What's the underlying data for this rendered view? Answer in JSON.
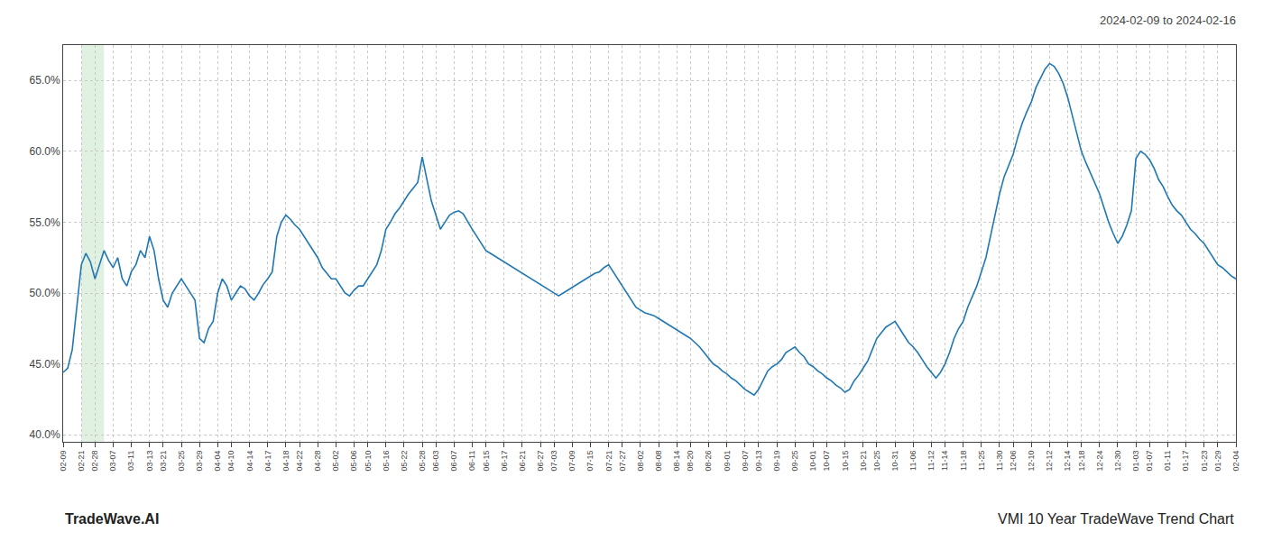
{
  "chart_data": {
    "type": "line",
    "title": "2024-02-09 to 2024-02-16",
    "annotations": [
      {
        "text": "TradeWave.AI"
      },
      {
        "text": "VMI 10 Year TradeWave Trend Chart"
      }
    ],
    "categories": [
      "02-09",
      null,
      null,
      null,
      "02-21",
      null,
      null,
      "02-28",
      null,
      null,
      null,
      "03-07",
      null,
      null,
      null,
      "03-11",
      null,
      null,
      null,
      "03-13",
      null,
      null,
      "03-21",
      null,
      null,
      null,
      "03-25",
      null,
      null,
      null,
      "03-29",
      null,
      null,
      null,
      "04-04",
      null,
      null,
      "04-10",
      null,
      null,
      null,
      "04-14",
      null,
      null,
      null,
      "04-17",
      null,
      null,
      null,
      "04-18",
      null,
      null,
      "04-22",
      null,
      null,
      null,
      "04-28",
      null,
      null,
      null,
      "05-02",
      null,
      null,
      null,
      "05-06",
      null,
      null,
      "05-10",
      null,
      null,
      null,
      "05-16",
      null,
      null,
      null,
      "05-22",
      null,
      null,
      null,
      "05-28",
      null,
      null,
      "06-03",
      null,
      null,
      null,
      "06-07",
      null,
      null,
      null,
      "06-11",
      null,
      null,
      "06-15",
      null,
      null,
      null,
      "06-17",
      null,
      null,
      null,
      "06-21",
      null,
      null,
      null,
      "06-27",
      null,
      null,
      "07-03",
      null,
      null,
      null,
      "07-09",
      null,
      null,
      null,
      "07-15",
      null,
      null,
      null,
      "07-21",
      null,
      null,
      "07-27",
      null,
      null,
      null,
      "08-02",
      null,
      null,
      null,
      "08-08",
      null,
      null,
      null,
      "08-14",
      null,
      null,
      "08-20",
      null,
      null,
      null,
      "08-26",
      null,
      null,
      null,
      "09-01",
      null,
      null,
      null,
      "09-07",
      null,
      null,
      "09-13",
      null,
      null,
      null,
      "09-19",
      null,
      null,
      null,
      "09-25",
      null,
      null,
      null,
      "10-01",
      null,
      null,
      "10-07",
      null,
      null,
      null,
      "10-15",
      null,
      null,
      null,
      "10-21",
      null,
      null,
      "10-25",
      null,
      null,
      null,
      "10-31",
      null,
      null,
      null,
      "11-06",
      null,
      null,
      null,
      "11-12",
      null,
      null,
      "11-14",
      null,
      null,
      null,
      "11-18",
      null,
      null,
      null,
      "11-25",
      null,
      null,
      null,
      "11-30",
      null,
      null,
      "12-06",
      null,
      null,
      null,
      "12-10",
      null,
      null,
      null,
      "12-12",
      null,
      null,
      null,
      "12-14",
      null,
      null,
      "12-18",
      null,
      null,
      null,
      "12-24",
      null,
      null,
      null,
      "12-30",
      null,
      null,
      null,
      "01-03",
      null,
      null,
      "01-07",
      null,
      null,
      null,
      "01-11",
      null,
      null,
      null,
      "01-17",
      null,
      null,
      null,
      "01-23",
      null,
      null,
      "01-29",
      null,
      null,
      null,
      "02-04"
    ],
    "values": [
      0.444,
      0.447,
      0.46,
      0.49,
      0.52,
      0.528,
      0.522,
      0.51,
      0.52,
      0.53,
      0.523,
      0.518,
      0.525,
      0.51,
      0.505,
      0.515,
      0.52,
      0.53,
      0.525,
      0.54,
      0.53,
      0.51,
      0.495,
      0.49,
      0.5,
      0.505,
      0.51,
      0.505,
      0.5,
      0.495,
      0.468,
      0.465,
      0.475,
      0.48,
      0.5,
      0.51,
      0.505,
      0.495,
      0.5,
      0.505,
      0.503,
      0.498,
      0.495,
      0.5,
      0.506,
      0.51,
      0.515,
      0.54,
      0.55,
      0.555,
      0.552,
      0.548,
      0.545,
      0.54,
      0.535,
      0.53,
      0.525,
      0.518,
      0.514,
      0.51,
      0.51,
      0.505,
      0.5,
      0.498,
      0.502,
      0.505,
      0.505,
      0.51,
      0.515,
      0.52,
      0.53,
      0.545,
      0.55,
      0.556,
      0.56,
      0.565,
      0.57,
      0.574,
      0.578,
      0.596,
      0.58,
      0.565,
      0.555,
      0.545,
      0.55,
      0.555,
      0.557,
      0.558,
      0.556,
      0.55,
      0.545,
      0.54,
      0.535,
      0.53,
      0.528,
      0.526,
      0.524,
      0.522,
      0.52,
      0.518,
      0.516,
      0.514,
      0.512,
      0.51,
      0.508,
      0.506,
      0.504,
      0.502,
      0.5,
      0.498,
      0.5,
      0.502,
      0.504,
      0.506,
      0.508,
      0.51,
      0.512,
      0.514,
      0.515,
      0.518,
      0.52,
      0.515,
      0.51,
      0.505,
      0.5,
      0.495,
      0.49,
      0.488,
      0.486,
      0.485,
      0.484,
      0.482,
      0.48,
      0.478,
      0.476,
      0.474,
      0.472,
      0.47,
      0.468,
      0.465,
      0.462,
      0.458,
      0.454,
      0.45,
      0.448,
      0.445,
      0.443,
      0.44,
      0.438,
      0.435,
      0.432,
      0.43,
      0.428,
      0.432,
      0.438,
      0.445,
      0.448,
      0.45,
      0.453,
      0.458,
      0.46,
      0.462,
      0.458,
      0.455,
      0.45,
      0.448,
      0.445,
      0.443,
      0.44,
      0.438,
      0.435,
      0.433,
      0.43,
      0.432,
      0.438,
      0.442,
      0.447,
      0.452,
      0.46,
      0.468,
      0.472,
      0.476,
      0.478,
      0.48,
      0.475,
      0.47,
      0.465,
      0.462,
      0.458,
      0.453,
      0.448,
      0.444,
      0.44,
      0.444,
      0.45,
      0.458,
      0.468,
      0.475,
      0.48,
      0.49,
      0.498,
      0.505,
      0.515,
      0.525,
      0.54,
      0.555,
      0.57,
      0.582,
      0.59,
      0.598,
      0.61,
      0.62,
      0.628,
      0.635,
      0.645,
      0.652,
      0.658,
      0.662,
      0.66,
      0.655,
      0.648,
      0.638,
      0.625,
      0.612,
      0.6,
      0.592,
      0.585,
      0.578,
      0.57,
      0.56,
      0.55,
      0.542,
      0.535,
      0.54,
      0.548,
      0.558,
      0.595,
      0.6,
      0.598,
      0.594,
      0.588,
      0.58,
      0.575,
      0.568,
      0.562,
      0.558,
      0.555,
      0.55,
      0.545,
      0.542,
      0.538,
      0.535,
      0.53,
      0.525,
      0.52,
      0.518,
      0.515,
      0.512,
      0.51
    ],
    "color": "#1f77b4",
    "highlight": {
      "x": [
        4,
        9
      ],
      "color": "#daeeda"
    },
    "ylim": [
      0.395,
      0.675
    ],
    "yticks": [
      {
        "value": 0.4,
        "label": "40.0%"
      },
      {
        "value": 0.45,
        "label": "45.0%"
      },
      {
        "value": 0.5,
        "label": "50.0%"
      },
      {
        "value": 0.55,
        "label": "55.0%"
      },
      {
        "value": 0.6,
        "label": "60.0%"
      },
      {
        "value": 0.65,
        "label": "65.0%"
      }
    ],
    "grid": true
  }
}
